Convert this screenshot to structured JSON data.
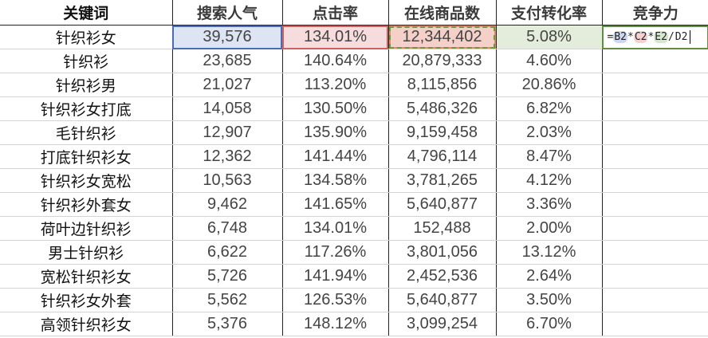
{
  "headers": [
    "关键词",
    "搜索人气",
    "点击率",
    "在线商品数",
    "支付转化率",
    "竞争力"
  ],
  "rows": [
    [
      "针织衫女",
      "39,576",
      "134.01%",
      "12,344,402",
      "5.08%"
    ],
    [
      "针织衫",
      "23,685",
      "140.64%",
      "20,879,333",
      "4.60%"
    ],
    [
      "针织衫男",
      "21,027",
      "113.20%",
      "8,115,856",
      "20.86%"
    ],
    [
      "针织衫女打底",
      "14,058",
      "130.50%",
      "5,486,326",
      "6.82%"
    ],
    [
      "毛针织衫",
      "12,907",
      "135.90%",
      "9,159,458",
      "2.03%"
    ],
    [
      "打底针织衫女",
      "12,362",
      "141.44%",
      "4,796,114",
      "8.47%"
    ],
    [
      "针织衫女宽松",
      "10,563",
      "134.58%",
      "3,781,265",
      "4.12%"
    ],
    [
      "针织衫外套女",
      "9,462",
      "141.65%",
      "5,640,877",
      "3.36%"
    ],
    [
      "荷叶边针织衫",
      "6,748",
      "134.01%",
      "152,488",
      "2.00%"
    ],
    [
      "男士针织衫",
      "6,622",
      "117.26%",
      "3,801,056",
      "13.12%"
    ],
    [
      "宽松针织衫女",
      "5,726",
      "141.94%",
      "2,452,536",
      "2.64%"
    ],
    [
      "针织衫女外套",
      "5,562",
      "126.53%",
      "5,640,877",
      "3.50%"
    ],
    [
      "高领针织衫女",
      "5,376",
      "148.12%",
      "3,099,254",
      "6.70%"
    ]
  ],
  "formula": {
    "eq": "=",
    "b": "B2",
    "op1": "*",
    "c": "C2",
    "op2": "*",
    "e": "E2",
    "op3": "/",
    "d": "D2"
  },
  "colors": {
    "ref_b": "#4a6bb5",
    "ref_c": "#d06060",
    "ref_d": "#e08a78",
    "ref_e": "#6b9a3a"
  }
}
